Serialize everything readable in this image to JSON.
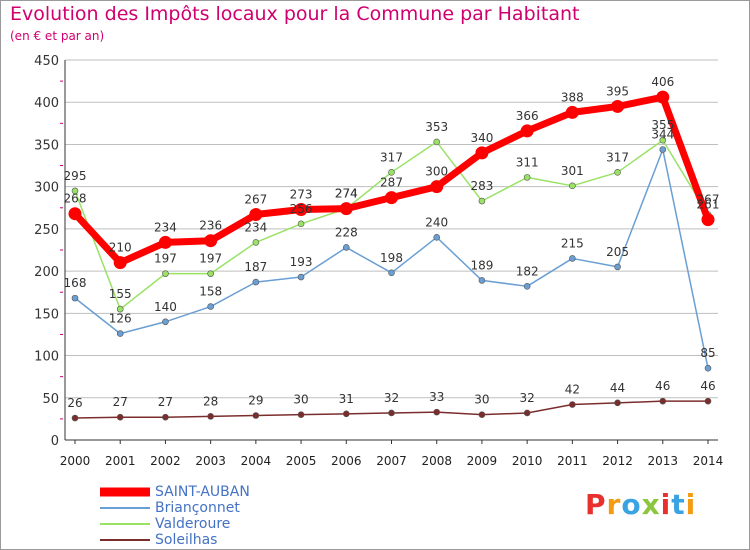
{
  "header": {
    "title": "Evolution des Impôts locaux pour la Commune par Habitant",
    "subtitle": "(en € et par an)"
  },
  "logo": {
    "text": "Proxiti"
  },
  "colors": {
    "title": "#d0006f",
    "grid": "#bfbfbf",
    "axis_tick_y": "#d0006f",
    "legend_text": "#4472c4"
  },
  "chart_data": {
    "type": "line",
    "title": "Evolution des Impôts locaux pour la Commune par Habitant",
    "subtitle": "(en € et par an)",
    "x": [
      "2000",
      "2001",
      "2002",
      "2003",
      "2004",
      "2005",
      "2006",
      "2007",
      "2008",
      "2009",
      "2010",
      "2011",
      "2012",
      "2013",
      "2014"
    ],
    "ylim": [
      0,
      450
    ],
    "yticks": [
      0,
      50,
      100,
      150,
      200,
      250,
      300,
      350,
      400,
      450
    ],
    "grid": true,
    "legend_position": "bottom-left",
    "series": [
      {
        "name": "SAINT-AUBAN",
        "color": "#ff0000",
        "values": [
          268,
          210,
          234,
          236,
          267,
          273,
          274,
          287,
          300,
          340,
          366,
          388,
          395,
          406,
          261
        ],
        "labels": [
          "268",
          "210",
          "234",
          "236",
          "267",
          "273",
          "274",
          "287",
          "300",
          "340",
          "366",
          "388",
          "395",
          "406",
          "261"
        ]
      },
      {
        "name": "Briançonnet",
        "color": "#6a9fd4",
        "values": [
          168,
          126,
          140,
          158,
          187,
          193,
          228,
          198,
          240,
          189,
          182,
          215,
          205,
          344,
          85
        ],
        "labels": [
          "168",
          "126",
          "140",
          "158",
          "187",
          "193",
          "228",
          "198",
          "240",
          "189",
          "182",
          "215",
          "205",
          "344",
          "85"
        ]
      },
      {
        "name": "Valderoure",
        "color": "#99e265",
        "values": [
          295,
          155,
          197,
          197,
          234,
          256,
          274,
          317,
          353,
          283,
          311,
          301,
          317,
          355,
          267
        ],
        "labels": [
          "295",
          "155",
          "197",
          "197",
          "234",
          "256",
          "274",
          "317",
          "353",
          "283",
          "311",
          "301",
          "317",
          "355",
          "267"
        ]
      },
      {
        "name": "Soleilhas",
        "color": "#7b2d2d",
        "values": [
          26,
          27,
          27,
          28,
          29,
          30,
          31,
          32,
          33,
          30,
          32,
          42,
          44,
          46,
          46
        ],
        "labels": [
          "26",
          "27",
          "27",
          "28",
          "29",
          "30",
          "31",
          "32",
          "33",
          "30",
          "32",
          "42",
          "44",
          "46",
          "46"
        ]
      }
    ]
  }
}
